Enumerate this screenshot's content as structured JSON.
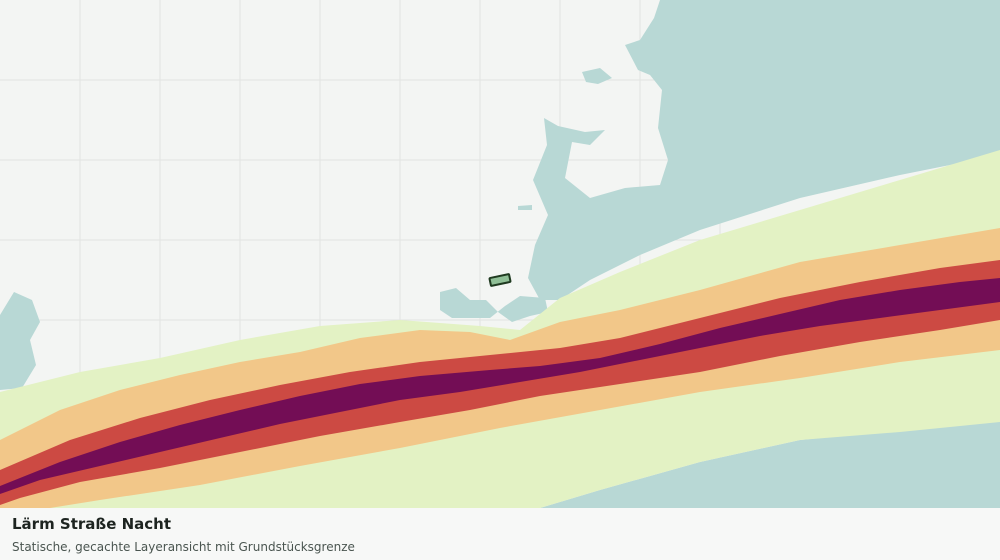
{
  "map": {
    "layer_name": "Lärm Straße Nacht",
    "colors": {
      "background": "#f3f5f3",
      "grid": "#e2e4e2",
      "water": "#b8d8d5",
      "noise_band_1": "#e3f2c4",
      "noise_band_2": "#f2c789",
      "noise_band_3": "#cc4a43",
      "noise_band_4": "#730d55",
      "parcel_fill": "#8fbf96",
      "parcel_stroke": "#1f3a20"
    }
  },
  "caption": {
    "title": "Lärm Straße Nacht",
    "subtitle": "Statische, gecachte Layeransicht mit Grundstücksgrenze"
  }
}
